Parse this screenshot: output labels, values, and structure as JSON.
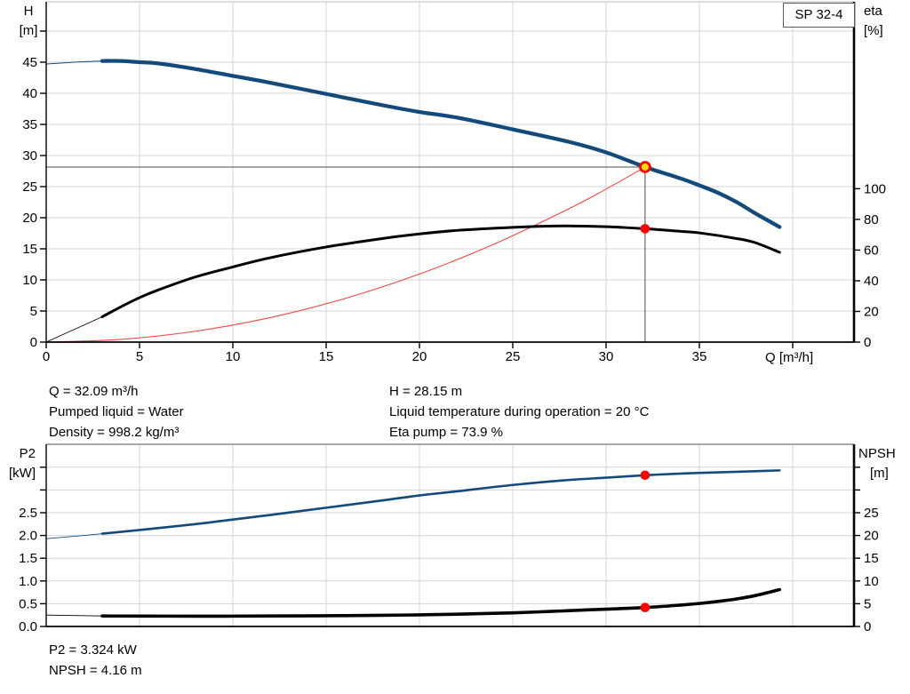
{
  "pump_model": "SP 32-4",
  "colors": {
    "curve_blue": "#134a7c",
    "curve_black": "#000000",
    "system_red": "#f64444",
    "marker_red": "#fe0000",
    "duty_yellow": "#ffdf00",
    "grid": "#d4d4d4",
    "axis": "#000000",
    "crosshair": "#4d4d4d",
    "box_border": "#595959"
  },
  "annotations": {
    "q": "Q = 32.09 m³/h",
    "h": "H = 28.15 m",
    "pumped_liquid": "Pumped liquid = Water",
    "liquid_temperature": "Liquid temperature during operation = 20 °C",
    "density": "Density = 998.2 kg/m³",
    "eta_pump": "Eta pump = 73.9 %",
    "p2": "P2 = 3.324 kW",
    "npsh": "NPSH = 4.16 m"
  },
  "chart_data": [
    {
      "type": "line",
      "title": "SP 32-4 pump performance curve",
      "x_axis": {
        "label": "Q [m³/h]",
        "range": [
          0,
          43.3
        ],
        "ticks": [
          0,
          5,
          10,
          15,
          20,
          25,
          30,
          35
        ],
        "unlabeled_ticks": [
          40
        ],
        "gridlines": [
          5,
          10,
          15,
          20,
          25,
          30,
          35,
          40
        ],
        "decimals": 0
      },
      "left_axis": {
        "label_lines": [
          "H",
          "[m]"
        ],
        "unit": "m",
        "range": [
          0,
          54.7
        ],
        "labeled_ticks": [
          0,
          5,
          10,
          15,
          20,
          25,
          30,
          35,
          40,
          45
        ],
        "unlabeled_ticks": [
          50
        ],
        "gridlines": [
          5,
          10,
          15,
          20,
          25,
          30,
          35,
          40,
          45,
          50
        ],
        "decimals": 0
      },
      "right_axis": {
        "label_lines": [
          "eta",
          "[%]"
        ],
        "unit": "%",
        "range": [
          0,
          100
        ],
        "labeled_ticks": [
          0,
          20,
          40,
          60,
          80,
          100
        ],
        "unlabeled_ticks": [],
        "decimals": 0
      },
      "duty_point": {
        "q": 32.09,
        "h": 28.15
      },
      "markers": [
        {
          "name": "eta-operating-point",
          "q": 32.09,
          "value": 73.9,
          "axis": "right"
        }
      ],
      "series": [
        {
          "name": "system-curve",
          "axis": "left",
          "color": "system_red",
          "width": 1.1,
          "points": [
            [
              0,
              0
            ],
            [
              4,
              0.44
            ],
            [
              8,
              1.75
            ],
            [
              12,
              3.94
            ],
            [
              16,
              7.0
            ],
            [
              20,
              10.94
            ],
            [
              24,
              15.75
            ],
            [
              28,
              21.43
            ],
            [
              30,
              24.6
            ],
            [
              32.09,
              28.15
            ]
          ]
        },
        {
          "name": "head-curve",
          "axis": "left",
          "color": "curve_blue",
          "width": 4.3,
          "thin_width": 1,
          "thin_until": 3,
          "points": [
            [
              0,
              44.7
            ],
            [
              1.5,
              45.0
            ],
            [
              3,
              45.2
            ],
            [
              4,
              45.2
            ],
            [
              5,
              45.0
            ],
            [
              6,
              44.8
            ],
            [
              8,
              43.9
            ],
            [
              10,
              42.8
            ],
            [
              12,
              41.7
            ],
            [
              15,
              39.9
            ],
            [
              18,
              38.1
            ],
            [
              20,
              37.0
            ],
            [
              22,
              36.1
            ],
            [
              25,
              34.2
            ],
            [
              28,
              32.2
            ],
            [
              30,
              30.5
            ],
            [
              32.09,
              28.15
            ],
            [
              34,
              26.3
            ],
            [
              35,
              25.2
            ],
            [
              36,
              24.0
            ],
            [
              37,
              22.5
            ],
            [
              38,
              20.7
            ],
            [
              39.3,
              18.5
            ]
          ]
        },
        {
          "name": "efficiency-curve",
          "axis": "right",
          "color": "curve_black",
          "width": 3,
          "thin_width": 0.9,
          "thin_until": 3,
          "points": [
            [
              0,
              0
            ],
            [
              1,
              5.5
            ],
            [
              2,
              11
            ],
            [
              3,
              16.5
            ],
            [
              4,
              23
            ],
            [
              5,
              29
            ],
            [
              6,
              34
            ],
            [
              8,
              42.5
            ],
            [
              10,
              49
            ],
            [
              12,
              55
            ],
            [
              15,
              62
            ],
            [
              18,
              67.5
            ],
            [
              20,
              70.5
            ],
            [
              22,
              72.8
            ],
            [
              25,
              74.8
            ],
            [
              27,
              75.6
            ],
            [
              28,
              75.7
            ],
            [
              30,
              75.2
            ],
            [
              32.09,
              73.9
            ],
            [
              34,
              72.2
            ],
            [
              35,
              71.2
            ],
            [
              37,
              67.5
            ],
            [
              38,
              64.8
            ],
            [
              39.3,
              58.5
            ]
          ]
        }
      ]
    },
    {
      "type": "line",
      "title": "P2 and NPSH curves",
      "x_axis": {
        "label": "",
        "range": [
          0,
          43.3
        ],
        "ticks": [],
        "unlabeled_ticks": [],
        "gridlines": [
          5,
          10,
          15,
          20,
          25,
          30,
          35,
          40
        ],
        "decimals": 0
      },
      "left_axis": {
        "label_lines": [
          "P2",
          "[kW]"
        ],
        "unit": "kW",
        "range": [
          0,
          4.0
        ],
        "labeled_ticks": [
          0,
          0.5,
          1,
          1.5,
          2,
          2.5
        ],
        "unlabeled_ticks": [
          3,
          3.5
        ],
        "gridlines": [
          0.5,
          1,
          1.5,
          2,
          2.5,
          3,
          3.5
        ],
        "decimals": 1
      },
      "right_axis": {
        "label_lines": [
          "NPSH",
          "[m]"
        ],
        "unit": "m",
        "range": [
          0,
          40
        ],
        "labeled_ticks": [
          0,
          5,
          10,
          15,
          20,
          25
        ],
        "unlabeled_ticks": [
          30,
          35
        ],
        "decimals": 0
      },
      "markers": [
        {
          "name": "p2-operating-point",
          "q": 32.09,
          "value": 3.324,
          "axis": "left"
        },
        {
          "name": "npsh-operating-point",
          "q": 32.09,
          "value": 4.16,
          "axis": "right"
        }
      ],
      "series": [
        {
          "name": "p2-curve",
          "axis": "left",
          "color": "curve_blue",
          "width": 2.6,
          "thin_width": 0.9,
          "thin_until": 3,
          "points": [
            [
              0,
              1.93
            ],
            [
              2,
              2.0
            ],
            [
              3,
              2.04
            ],
            [
              5,
              2.12
            ],
            [
              8,
              2.25
            ],
            [
              10,
              2.35
            ],
            [
              12,
              2.45
            ],
            [
              15,
              2.61
            ],
            [
              18,
              2.77
            ],
            [
              20,
              2.88
            ],
            [
              22,
              2.97
            ],
            [
              25,
              3.11
            ],
            [
              28,
              3.22
            ],
            [
              30,
              3.27
            ],
            [
              32.09,
              3.324
            ],
            [
              34,
              3.36
            ],
            [
              35,
              3.375
            ],
            [
              37,
              3.4
            ],
            [
              39.3,
              3.43
            ]
          ]
        },
        {
          "name": "npsh-curve",
          "axis": "right",
          "color": "curve_black",
          "width": 3.6,
          "thin_width": 0.9,
          "thin_until": 3,
          "points": [
            [
              0,
              2.5
            ],
            [
              3,
              2.3
            ],
            [
              5,
              2.28
            ],
            [
              8,
              2.26
            ],
            [
              10,
              2.27
            ],
            [
              12,
              2.3
            ],
            [
              15,
              2.36
            ],
            [
              18,
              2.45
            ],
            [
              20,
              2.55
            ],
            [
              22,
              2.7
            ],
            [
              25,
              3.0
            ],
            [
              27,
              3.3
            ],
            [
              29,
              3.65
            ],
            [
              30,
              3.8
            ],
            [
              32.09,
              4.16
            ],
            [
              34,
              4.7
            ],
            [
              35,
              5.05
            ],
            [
              36,
              5.5
            ],
            [
              37,
              6.05
            ],
            [
              38,
              6.8
            ],
            [
              39.3,
              8.1
            ]
          ]
        }
      ]
    }
  ]
}
